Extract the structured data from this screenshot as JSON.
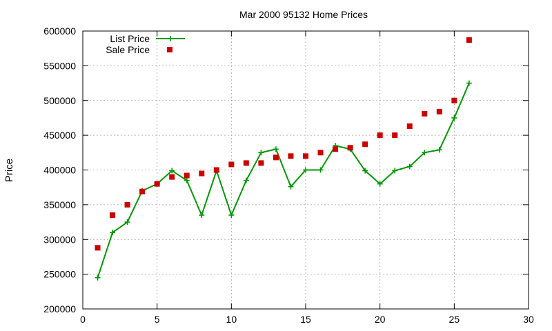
{
  "chart_data": {
    "type": "line",
    "title": "Mar 2000 95132 Home Prices",
    "xlabel": "",
    "ylabel": "Price",
    "xlim": [
      0,
      30
    ],
    "ylim": [
      200000,
      600000
    ],
    "xticks": [
      0,
      5,
      10,
      15,
      20,
      25,
      30
    ],
    "yticks": [
      200000,
      250000,
      300000,
      350000,
      400000,
      450000,
      500000,
      550000,
      600000
    ],
    "xtick_labels": [
      "0",
      "5",
      "10",
      "15",
      "20",
      "25",
      "30"
    ],
    "ytick_labels": [
      "200000",
      "250000",
      "300000",
      "350000",
      "400000",
      "450000",
      "500000",
      "550000",
      "600000"
    ],
    "grid": true,
    "legend_position": "top-left",
    "x": [
      1,
      2,
      3,
      4,
      5,
      6,
      7,
      8,
      9,
      10,
      11,
      12,
      13,
      14,
      15,
      16,
      17,
      18,
      19,
      20,
      21,
      22,
      23,
      24,
      25,
      26
    ],
    "series": [
      {
        "name": "List Price",
        "style": "line-plus",
        "color": "#009900",
        "values": [
          245000,
          310000,
          325000,
          370000,
          380000,
          399000,
          385000,
          335000,
          399000,
          335000,
          385000,
          425000,
          430000,
          376000,
          400000,
          400000,
          435000,
          430000,
          399000,
          380000,
          399000,
          405000,
          425000,
          429000,
          475000,
          525000
        ]
      },
      {
        "name": "Sale Price",
        "style": "square-points",
        "color": "#cc0000",
        "values": [
          288000,
          335000,
          350000,
          369000,
          380000,
          390000,
          392000,
          395000,
          400000,
          408000,
          410000,
          410000,
          418000,
          420000,
          420000,
          425000,
          430000,
          432000,
          437000,
          450000,
          450000,
          463000,
          481000,
          484000,
          500000,
          587000
        ]
      }
    ]
  }
}
